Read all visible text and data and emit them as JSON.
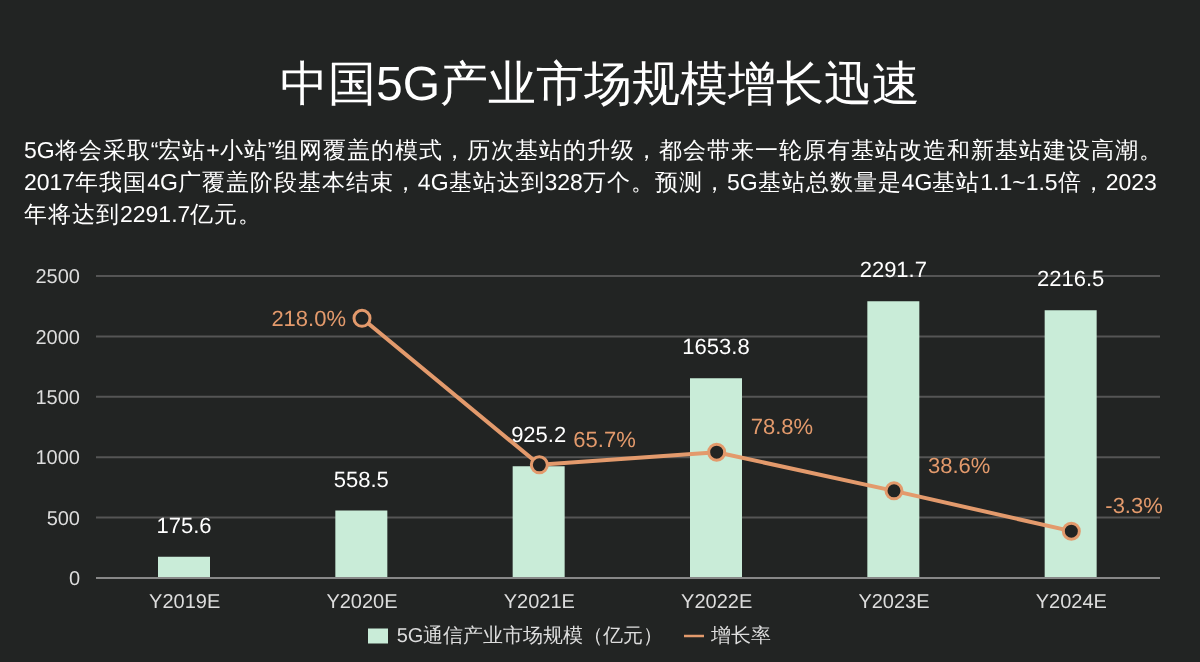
{
  "chart_data": {
    "type": "bar",
    "title": "中国5G产业市场规模增长迅速",
    "subtitle": "5G将会采取“宏站+小站”组网覆盖的模式，历次基站的升级，都会带来一轮原有基站改造和新基站建设高潮。2017年我国4G广覆盖阶段基本结束，4G基站达到328万个。预测，5G基站总数量是4G基站1.1~1.5倍，2023年将达到2291.7亿元。",
    "categories": [
      "Y2019E",
      "Y2020E",
      "Y2021E",
      "Y2022E",
      "Y2023E",
      "Y2024E"
    ],
    "series": [
      {
        "name": "5G通信产业市场规模（亿元）",
        "type": "bar",
        "color": "#c9ecd8",
        "values": [
          175.6,
          558.5,
          925.2,
          1653.8,
          2291.7,
          2216.5
        ],
        "value_labels": [
          "175.6",
          "558.5",
          "925.2",
          "1653.8",
          "2291.7",
          "2216.5"
        ]
      },
      {
        "name": "增长率",
        "type": "line",
        "axis": "y2",
        "color": "#e39a6c",
        "values": [
          null,
          218.0,
          65.7,
          78.8,
          38.6,
          -3.3
        ],
        "value_labels": [
          null,
          "218.0%",
          "65.7%",
          "78.8%",
          "38.6%",
          "-3.3%"
        ]
      }
    ],
    "ylim": [
      0,
      2500
    ],
    "yticks": [
      0,
      500,
      1000,
      1500,
      2000,
      2500
    ],
    "y2lim": [
      -52,
      262
    ],
    "tick_labels": "xy",
    "grid": "y",
    "legend": "bottom",
    "marker": "circle"
  }
}
